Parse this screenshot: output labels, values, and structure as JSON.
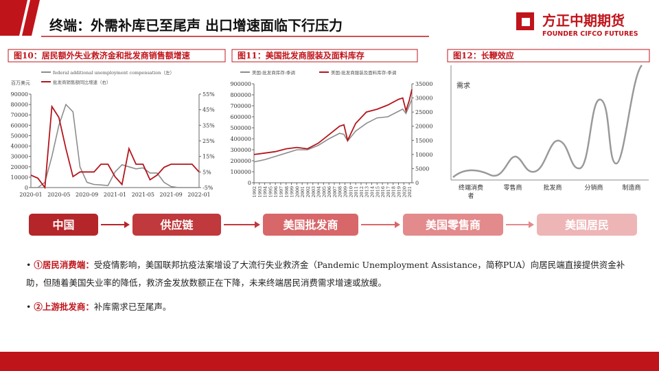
{
  "header": {
    "title": "终端：外需补库已至尾声 出口增速面临下行压力",
    "brand": "方正中期期货",
    "brand_en": "FOUNDER CIFCO FUTURES"
  },
  "chart_data": [
    {
      "type": "line",
      "title": "图10：居民额外失业救济金和批发商销售额增速",
      "y_unit": "百万美元",
      "categories": [
        "2020-01",
        null,
        null,
        null,
        "2020-05",
        null,
        null,
        null,
        "2020-09",
        null,
        null,
        null,
        "2021-01",
        null,
        null,
        null,
        "2021-05",
        null,
        null,
        null,
        "2021-09",
        null,
        null,
        null,
        "2022-01"
      ],
      "series": [
        {
          "name": "federal additional unemployment compensation（左）",
          "color": "#8c8c8c",
          "values": [
            0,
            0,
            5000,
            30000,
            60000,
            80000,
            73000,
            20000,
            5000,
            3000,
            2500,
            2000,
            15000,
            22000,
            20000,
            18000,
            19000,
            14000,
            14000,
            5000,
            1000,
            0,
            0,
            0,
            0
          ]
        },
        {
          "name": "批发商销售额同比增速（右）",
          "color": "#b4141b",
          "axis": "y2",
          "values": [
            3,
            1,
            -5,
            47,
            40,
            20,
            2,
            5,
            5,
            5,
            10,
            10,
            2,
            -3,
            20,
            10,
            10,
            0,
            3,
            8,
            10,
            10,
            10,
            10,
            5
          ]
        }
      ],
      "ylim": [
        0,
        90000
      ],
      "yticks": [
        0,
        10000,
        20000,
        30000,
        40000,
        50000,
        60000,
        70000,
        80000,
        90000
      ],
      "y2lim": [
        -5,
        55
      ],
      "y2ticks": [
        {
          "value": -5,
          "label": "-5%"
        },
        {
          "value": 5,
          "label": "5%"
        },
        {
          "value": 15,
          "label": "15%"
        },
        {
          "value": 25,
          "label": "25%"
        },
        {
          "value": 35,
          "label": "35%"
        },
        {
          "value": 45,
          "label": "45%"
        },
        {
          "value": 55,
          "label": "55%"
        }
      ]
    },
    {
      "type": "line",
      "title": "图11：美国批发商服装及面料库存",
      "x": [
        1992,
        1994,
        1996,
        1998,
        2000,
        2002,
        2004,
        2006,
        2008,
        2008.8,
        2009.5,
        2011,
        2013,
        2015,
        2017,
        2019,
        2019.8,
        2020.4,
        2021,
        2021.5
      ],
      "series": [
        {
          "name": "美国:批发商库存:季调",
          "color": "#8c8c8c",
          "values": [
            190000,
            210000,
            240000,
            270000,
            300000,
            300000,
            340000,
            400000,
            450000,
            440000,
            380000,
            470000,
            540000,
            590000,
            600000,
            650000,
            670000,
            630000,
            700000,
            760000
          ]
        },
        {
          "name": "美国:批发商服装及面料库存:季调",
          "color": "#b4141b",
          "axis": "y2",
          "values": [
            10000,
            10500,
            11000,
            12000,
            12500,
            12000,
            14000,
            17000,
            20000,
            20500,
            15000,
            21000,
            25000,
            26000,
            27500,
            29500,
            30000,
            25500,
            29000,
            33000
          ]
        }
      ],
      "xlim": [
        1992,
        2021.5
      ],
      "xticks": [
        1992,
        1993,
        1994,
        1995,
        1996,
        1997,
        1998,
        1999,
        2000,
        2001,
        2002,
        2003,
        2004,
        2005,
        2006,
        2007,
        2008,
        2009,
        2010,
        2011,
        2012,
        2013,
        2014,
        2015,
        2016,
        2017,
        2018,
        2019,
        2020,
        2021
      ],
      "ylim": [
        0,
        900000
      ],
      "yticks": [
        0,
        100000,
        200000,
        300000,
        400000,
        500000,
        600000,
        700000,
        800000,
        900000
      ],
      "y2lim": [
        0,
        35000
      ],
      "y2ticks": [
        0,
        5000,
        10000,
        15000,
        20000,
        25000,
        30000,
        35000
      ]
    }
  ],
  "bullwhip": {
    "title": "图12：长鞭效应",
    "y_label": "需求",
    "stages": [
      "终端消费者",
      "零售商",
      "批发商",
      "分销商",
      "制造商"
    ]
  },
  "flow": [
    "中国",
    "供应链",
    "美国批发商",
    "美国零售商",
    "美国居民"
  ],
  "bullets": [
    {
      "lead": "①居民消费端：",
      "text": "受疫情影响，美国联邦抗疫法案增设了大流行失业救济金（Pandemic Unemployment Assistance，简称PUA）向居民端直接提供资金补助，但随着美国失业率的降低，救济金发放数额正在下降，未来终端居民消费需求增速或放缓。"
    },
    {
      "lead": "②上游批发商：",
      "text": "补库需求已至尾声。"
    }
  ]
}
